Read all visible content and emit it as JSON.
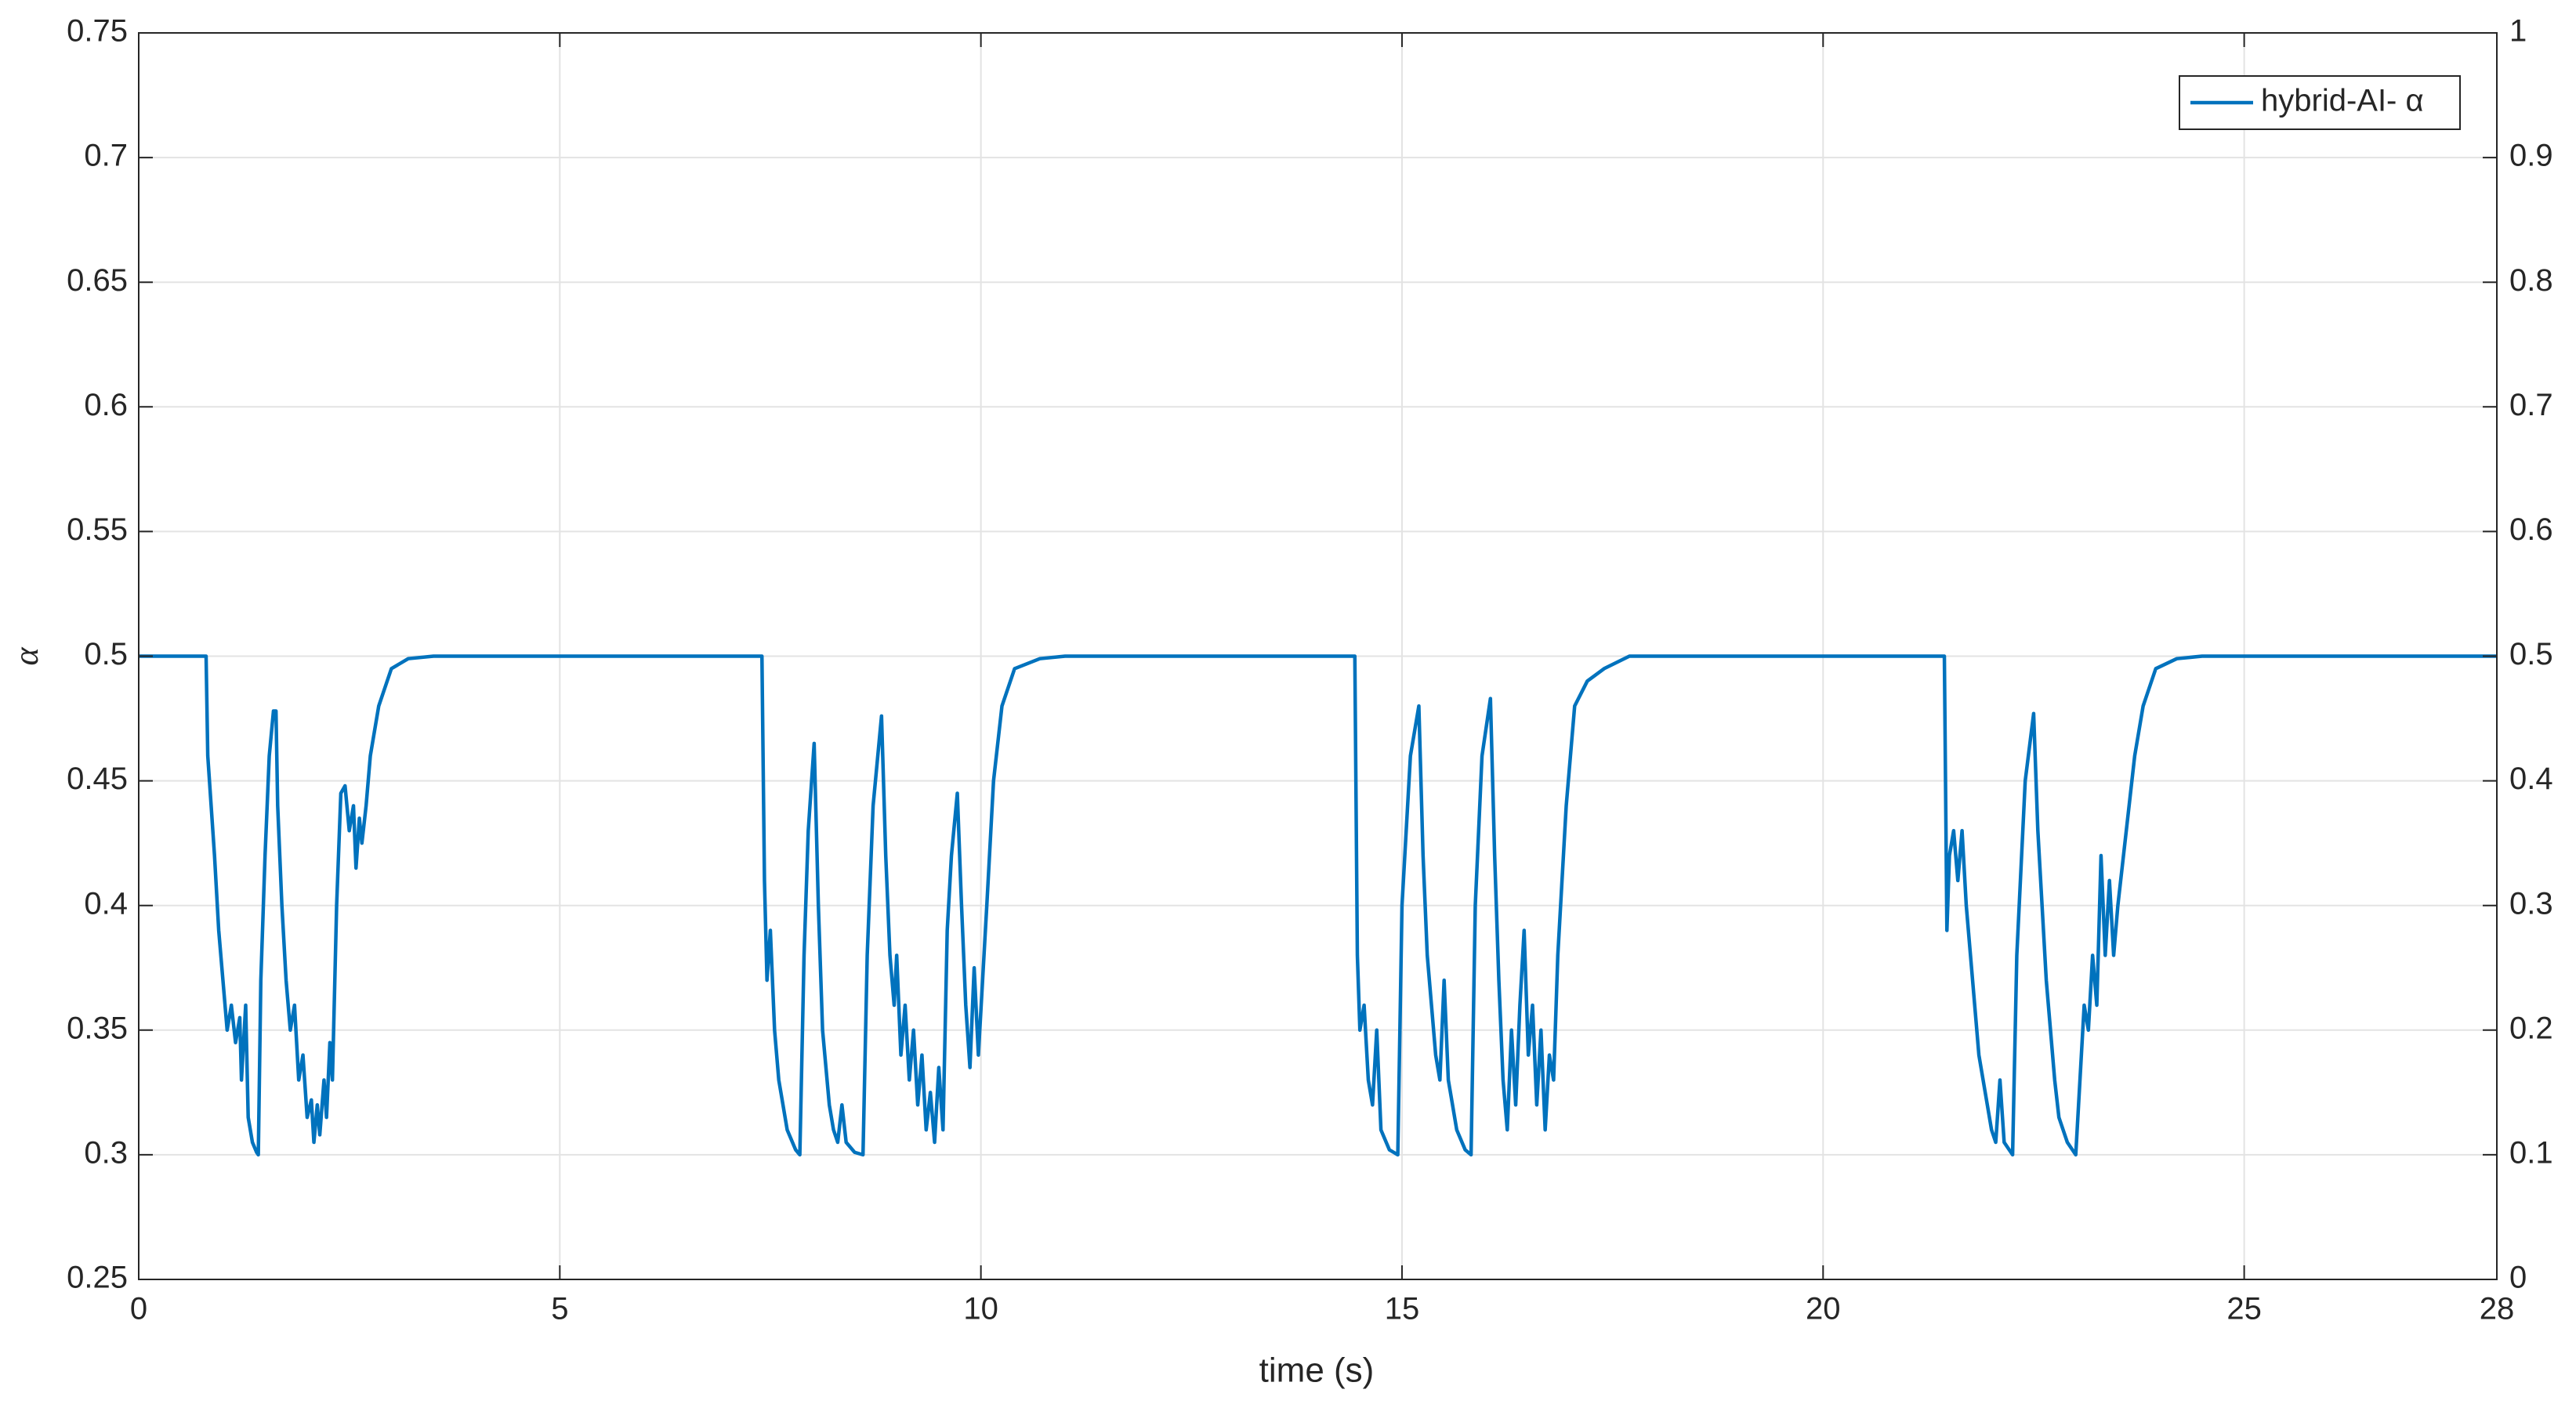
{
  "chart_data": {
    "type": "line",
    "xlabel": "time (s)",
    "ylabel": "α",
    "xlim": [
      0,
      28
    ],
    "xticks": [
      0,
      5,
      10,
      15,
      20,
      25,
      28
    ],
    "ylim": [
      0.25,
      0.75
    ],
    "yticks": [
      0.25,
      0.3,
      0.35,
      0.4,
      0.45,
      0.5,
      0.55,
      0.6,
      0.65,
      0.7,
      0.75
    ],
    "y2lim": [
      0,
      1
    ],
    "y2ticks": [
      0,
      0.1,
      0.2,
      0.3,
      0.4,
      0.5,
      0.6,
      0.7,
      0.8,
      0.9,
      1
    ],
    "grid": true,
    "legend": "upper right",
    "x": [
      0,
      0.8,
      0.82,
      0.9,
      0.95,
      1.0,
      1.05,
      1.1,
      1.15,
      1.2,
      1.22,
      1.27,
      1.3,
      1.35,
      1.4,
      1.42,
      1.45,
      1.5,
      1.55,
      1.6,
      1.63,
      1.65,
      1.7,
      1.75,
      1.8,
      1.85,
      1.9,
      1.95,
      2.0,
      2.05,
      2.08,
      2.12,
      2.15,
      2.2,
      2.23,
      2.27,
      2.3,
      2.35,
      2.4,
      2.45,
      2.5,
      2.55,
      2.58,
      2.62,
      2.65,
      2.7,
      2.75,
      2.85,
      3.0,
      3.2,
      3.5,
      7.4,
      7.43,
      7.46,
      7.5,
      7.55,
      7.6,
      7.7,
      7.8,
      7.85,
      7.9,
      7.95,
      8.02,
      8.07,
      8.12,
      8.2,
      8.25,
      8.3,
      8.35,
      8.4,
      8.5,
      8.6,
      8.65,
      8.72,
      8.82,
      8.87,
      8.92,
      8.97,
      9.0,
      9.05,
      9.1,
      9.15,
      9.2,
      9.25,
      9.3,
      9.35,
      9.4,
      9.45,
      9.5,
      9.55,
      9.6,
      9.65,
      9.72,
      9.77,
      9.82,
      9.87,
      9.92,
      9.97,
      10.02,
      10.07,
      10.15,
      10.25,
      10.4,
      10.7,
      11,
      14.44,
      14.47,
      14.5,
      14.55,
      14.6,
      14.65,
      14.7,
      14.75,
      14.85,
      14.95,
      15.0,
      15.1,
      15.2,
      15.25,
      15.3,
      15.35,
      15.4,
      15.45,
      15.5,
      15.55,
      15.65,
      15.75,
      15.82,
      15.87,
      15.95,
      16.05,
      16.1,
      16.15,
      16.2,
      16.25,
      16.3,
      16.35,
      16.4,
      16.45,
      16.5,
      16.55,
      16.6,
      16.65,
      16.7,
      16.75,
      16.8,
      16.85,
      16.95,
      17.05,
      17.2,
      17.4,
      17.7,
      21.44,
      21.47,
      21.5,
      21.55,
      21.6,
      21.65,
      21.7,
      21.75,
      21.8,
      21.85,
      21.9,
      21.95,
      22.0,
      22.05,
      22.1,
      22.15,
      22.25,
      22.3,
      22.4,
      22.5,
      22.55,
      22.6,
      22.65,
      22.7,
      22.75,
      22.8,
      22.9,
      23.0,
      23.05,
      23.1,
      23.15,
      23.2,
      23.25,
      23.3,
      23.35,
      23.4,
      23.45,
      23.5,
      23.6,
      23.7,
      23.8,
      23.95,
      24.2,
      24.5,
      28
    ],
    "series": [
      {
        "name": "hybrid-AI- α",
        "color": "#0072bd",
        "values": [
          0.5,
          0.5,
          0.46,
          0.42,
          0.39,
          0.37,
          0.35,
          0.36,
          0.345,
          0.355,
          0.33,
          0.36,
          0.315,
          0.305,
          0.301,
          0.3,
          0.37,
          0.42,
          0.46,
          0.478,
          0.478,
          0.44,
          0.4,
          0.37,
          0.35,
          0.36,
          0.33,
          0.34,
          0.315,
          0.322,
          0.305,
          0.32,
          0.308,
          0.33,
          0.315,
          0.345,
          0.33,
          0.4,
          0.445,
          0.448,
          0.43,
          0.44,
          0.415,
          0.435,
          0.425,
          0.44,
          0.46,
          0.48,
          0.495,
          0.499,
          0.5,
          0.5,
          0.41,
          0.37,
          0.39,
          0.35,
          0.33,
          0.31,
          0.302,
          0.3,
          0.38,
          0.43,
          0.465,
          0.4,
          0.35,
          0.32,
          0.31,
          0.305,
          0.32,
          0.305,
          0.301,
          0.3,
          0.38,
          0.44,
          0.476,
          0.42,
          0.38,
          0.36,
          0.38,
          0.34,
          0.36,
          0.33,
          0.35,
          0.32,
          0.34,
          0.31,
          0.325,
          0.305,
          0.335,
          0.31,
          0.39,
          0.42,
          0.445,
          0.4,
          0.36,
          0.335,
          0.375,
          0.34,
          0.37,
          0.4,
          0.45,
          0.48,
          0.495,
          0.499,
          0.5,
          0.5,
          0.38,
          0.35,
          0.36,
          0.33,
          0.32,
          0.35,
          0.31,
          0.302,
          0.3,
          0.4,
          0.46,
          0.48,
          0.42,
          0.38,
          0.36,
          0.34,
          0.33,
          0.37,
          0.33,
          0.31,
          0.302,
          0.3,
          0.4,
          0.46,
          0.483,
          0.42,
          0.37,
          0.33,
          0.31,
          0.35,
          0.32,
          0.36,
          0.39,
          0.34,
          0.36,
          0.32,
          0.35,
          0.31,
          0.34,
          0.33,
          0.38,
          0.44,
          0.48,
          0.49,
          0.495,
          0.5,
          0.5,
          0.39,
          0.42,
          0.43,
          0.41,
          0.43,
          0.4,
          0.38,
          0.36,
          0.34,
          0.33,
          0.32,
          0.31,
          0.305,
          0.33,
          0.305,
          0.3,
          0.38,
          0.45,
          0.477,
          0.43,
          0.4,
          0.37,
          0.35,
          0.33,
          0.315,
          0.305,
          0.3,
          0.33,
          0.36,
          0.35,
          0.38,
          0.36,
          0.42,
          0.38,
          0.41,
          0.38,
          0.4,
          0.43,
          0.46,
          0.48,
          0.495,
          0.499,
          0.5,
          0.5
        ]
      }
    ]
  }
}
